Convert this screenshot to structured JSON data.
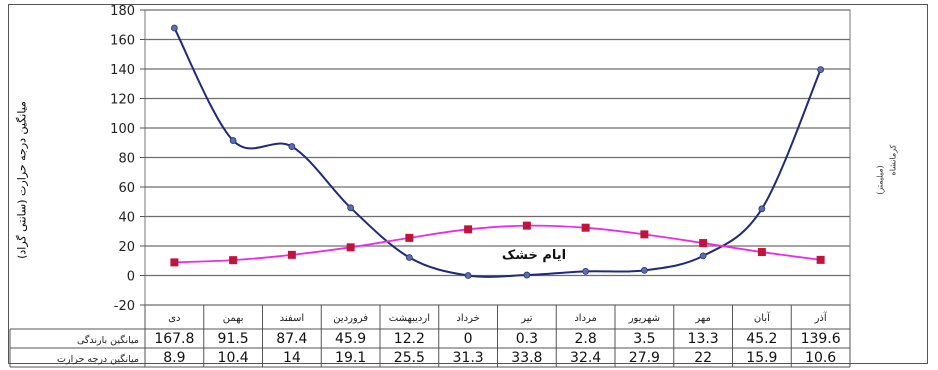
{
  "chart_data": {
    "type": "line",
    "ylabel": "میانگین درجه حرارت (سانتی گراد)",
    "right_label_1": "کرمانشاه",
    "right_label_2": "(میلیمتر)",
    "ylim": [
      -20,
      180
    ],
    "yticks": [
      -20,
      0,
      20,
      40,
      60,
      80,
      100,
      120,
      140,
      160,
      180
    ],
    "grid": true,
    "categories": [
      "دی",
      "بهمن",
      "اسفند",
      "فروردین",
      "اردیبهشت",
      "خرداد",
      "تیر",
      "مرداد",
      "شهریور",
      "مهر",
      "آبان",
      "آذر"
    ],
    "annotation": "ایام خشک",
    "series": [
      {
        "name": "میانگین بارندگی",
        "color": "#1f2a7a",
        "marker": "circle",
        "values": [
          167.8,
          91.5,
          87.4,
          45.9,
          12.2,
          0,
          0.3,
          2.8,
          3.5,
          13.3,
          45.2,
          139.6
        ]
      },
      {
        "name": "میانگین درجه حرارت",
        "color": "#e62ee6",
        "marker": "square",
        "marker_color": "#c0143c",
        "values": [
          8.9,
          10.4,
          14,
          19.1,
          25.5,
          31.3,
          33.8,
          32.4,
          27.9,
          22,
          15.9,
          10.6
        ]
      }
    ],
    "table_rows": [
      {
        "label": "میانگین بارندگی",
        "cells": [
          "167.8",
          "91.5",
          "87.4",
          "45.9",
          "12.2",
          "0",
          "0.3",
          "2.8",
          "3.5",
          "13.3",
          "45.2",
          "139.6"
        ]
      },
      {
        "label": "میانگین درجه حرارت",
        "cells": [
          "8.9",
          "10.4",
          "14",
          "19.1",
          "25.5",
          "31.3",
          "33.8",
          "32.4",
          "27.9",
          "22",
          "15.9",
          "10.6"
        ]
      }
    ]
  }
}
